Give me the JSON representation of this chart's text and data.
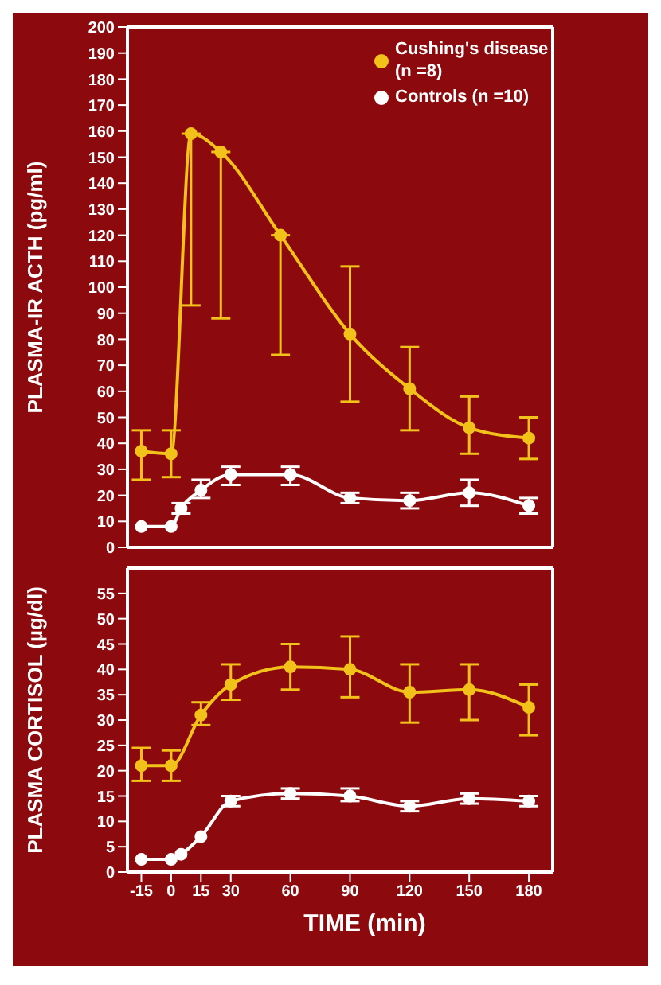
{
  "chart_data": [
    {
      "type": "line",
      "ylabel": "PLASMA-IR ACTH (pg/ml)",
      "xlim": [
        -22,
        192
      ],
      "xticks": [
        -15,
        0,
        15,
        30,
        60,
        90,
        120,
        150,
        180
      ],
      "ylim": [
        0,
        200
      ],
      "yticks": [
        0,
        10,
        20,
        30,
        40,
        50,
        60,
        70,
        80,
        90,
        100,
        110,
        120,
        130,
        140,
        150,
        160,
        170,
        180,
        190,
        200
      ],
      "tick_labels": "y",
      "legend": "top right",
      "marker": "circle",
      "line_style": "solid",
      "series": [
        {
          "name": "Cushing's disease (n =8)",
          "color": "#f2c21a",
          "x": [
            -15,
            0,
            10,
            25,
            55,
            90,
            120,
            150,
            180
          ],
          "values": [
            37,
            36,
            159,
            152,
            120,
            82,
            61,
            46,
            42
          ],
          "errors": [
            [
              26,
              45
            ],
            [
              27,
              45
            ],
            [
              93,
              159
            ],
            [
              88,
              152
            ],
            [
              74,
              120
            ],
            [
              56,
              108
            ],
            [
              45,
              77
            ],
            [
              36,
              58
            ],
            [
              34,
              50
            ]
          ]
        },
        {
          "name": "Controls (n =10)",
          "color": "#ffffff",
          "x": [
            -15,
            0,
            5,
            15,
            30,
            60,
            90,
            120,
            150,
            180
          ],
          "values": [
            8,
            8,
            15,
            22,
            28,
            28,
            19,
            18,
            21,
            16
          ],
          "errors": [
            null,
            null,
            [
              13,
              17
            ],
            [
              19,
              26
            ],
            [
              24,
              31
            ],
            [
              24,
              31
            ],
            [
              17,
              21
            ],
            [
              15,
              21
            ],
            [
              16,
              26
            ],
            [
              13,
              19
            ]
          ]
        }
      ]
    },
    {
      "type": "line",
      "ylabel": "PLASMA CORTISOL (µg/dl)",
      "xlabel": "TIME (min)",
      "xlim": [
        -22,
        192
      ],
      "xticks": [
        -15,
        0,
        15,
        30,
        60,
        90,
        120,
        150,
        180
      ],
      "ylim": [
        0,
        60
      ],
      "yticks": [
        0,
        5,
        10,
        15,
        20,
        25,
        30,
        35,
        40,
        45,
        50,
        55
      ],
      "marker": "circle",
      "line_style": "solid",
      "series": [
        {
          "color": "#f2c21a",
          "x": [
            -15,
            0,
            15,
            30,
            60,
            90,
            120,
            150,
            180
          ],
          "values": [
            21,
            21,
            31,
            37,
            40.5,
            40,
            35.5,
            36,
            32.5
          ],
          "errors": [
            [
              18,
              24.5
            ],
            [
              18,
              24
            ],
            [
              29,
              33.5
            ],
            [
              34,
              41
            ],
            [
              36,
              45
            ],
            [
              34.5,
              46.5
            ],
            [
              29.5,
              41
            ],
            [
              30,
              41
            ],
            [
              27,
              37
            ]
          ]
        },
        {
          "color": "#ffffff",
          "x": [
            -15,
            0,
            5,
            15,
            30,
            60,
            90,
            120,
            150,
            180
          ],
          "values": [
            2.5,
            2.5,
            3.5,
            7,
            14,
            15.5,
            15,
            13,
            14.5,
            14
          ],
          "errors": [
            null,
            null,
            null,
            null,
            [
              13,
              15
            ],
            [
              14.5,
              16.5
            ],
            [
              14,
              16.5
            ],
            [
              12,
              14
            ],
            [
              13.5,
              15.5
            ],
            [
              13,
              15
            ]
          ]
        }
      ]
    }
  ]
}
